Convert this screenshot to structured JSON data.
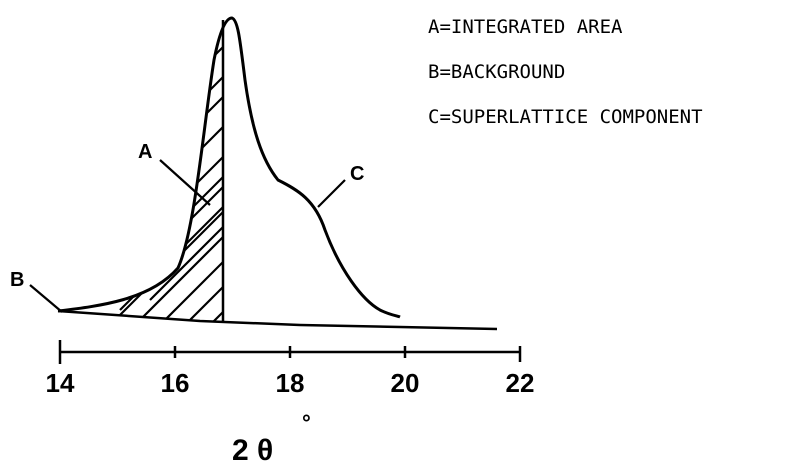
{
  "legend": {
    "a": "A=INTEGRATED AREA",
    "b": "B=BACKGROUND",
    "c": "C=SUPERLATTICE COMPONENT"
  },
  "callouts": {
    "a": "A",
    "b": "B",
    "c": "C"
  },
  "axis": {
    "title": "2 θ",
    "degree": "°",
    "ticks": [
      "14",
      "16",
      "18",
      "20",
      "22"
    ]
  }
}
